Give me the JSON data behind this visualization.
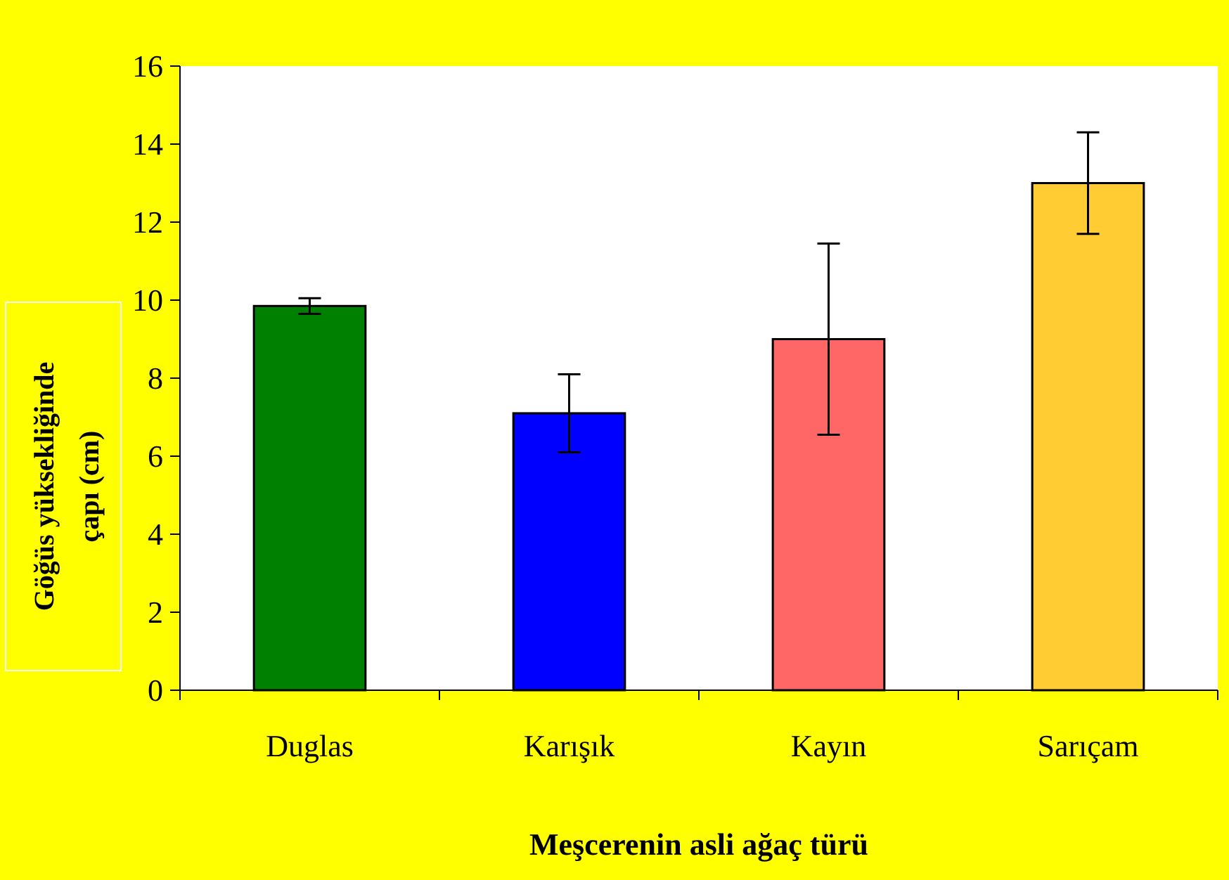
{
  "chart_data": {
    "type": "bar",
    "xlabel": "Meşcerenin asli ağaç türü",
    "ylabel": "Göğüs yüksekliğinde çapı (cm)",
    "categories": [
      "Duglas",
      "Karışık",
      "Kayın",
      "Sarıçam"
    ],
    "values": [
      9.85,
      7.1,
      9.0,
      13.0
    ],
    "errors": [
      0.2,
      1.0,
      2.45,
      1.3
    ],
    "colors": [
      "#008000",
      "#0000ff",
      "#ff6666",
      "#ffcc33"
    ],
    "ylim": [
      0,
      16
    ],
    "yticks": [
      0,
      2,
      4,
      6,
      8,
      10,
      12,
      14,
      16
    ],
    "grid": false
  }
}
